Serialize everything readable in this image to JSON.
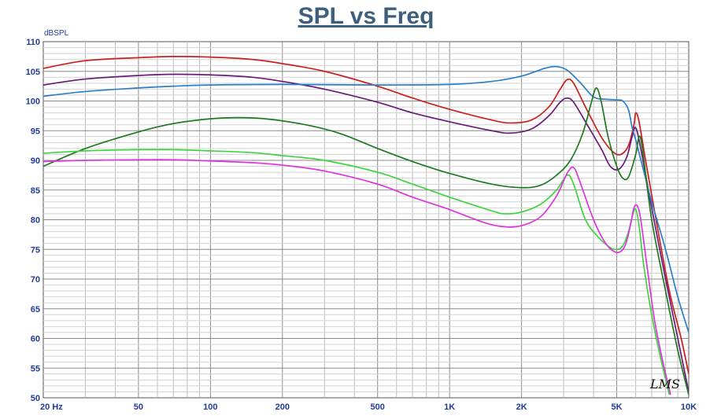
{
  "chart_data": {
    "type": "line",
    "title": "SPL vs Freq",
    "ylabel": "dBSPL",
    "x_scale": "log",
    "xlim": [
      20,
      10000
    ],
    "ylim": [
      50,
      110
    ],
    "grid": true,
    "x_tick_labels": [
      {
        "value": 20,
        "label": "20  Hz"
      },
      {
        "value": 50,
        "label": "50"
      },
      {
        "value": 100,
        "label": "100"
      },
      {
        "value": 200,
        "label": "200"
      },
      {
        "value": 500,
        "label": "500"
      },
      {
        "value": 1000,
        "label": "1K"
      },
      {
        "value": 2000,
        "label": "2K"
      },
      {
        "value": 5000,
        "label": "5K"
      },
      {
        "value": 10000,
        "label": "10K"
      }
    ],
    "y_ticks": [
      110,
      105,
      100,
      95,
      90,
      85,
      80,
      75,
      70,
      65,
      60,
      55,
      50
    ],
    "series": [
      {
        "color": "#cc1f1f",
        "points": [
          [
            20,
            105.5
          ],
          [
            30,
            106.8
          ],
          [
            50,
            107.3
          ],
          [
            70,
            107.5
          ],
          [
            100,
            107.4
          ],
          [
            150,
            107.0
          ],
          [
            200,
            106.3
          ],
          [
            300,
            105.0
          ],
          [
            500,
            102.5
          ],
          [
            700,
            100.5
          ],
          [
            1000,
            98.6
          ],
          [
            1500,
            96.8
          ],
          [
            1800,
            96.3
          ],
          [
            2200,
            96.8
          ],
          [
            2600,
            99.0
          ],
          [
            2900,
            102.0
          ],
          [
            3100,
            103.6
          ],
          [
            3300,
            103.0
          ],
          [
            3700,
            99.0
          ],
          [
            4300,
            94.0
          ],
          [
            4800,
            91.5
          ],
          [
            5200,
            91.0
          ],
          [
            5600,
            92.5
          ],
          [
            5900,
            96.0
          ],
          [
            6000,
            98.0
          ],
          [
            6200,
            96.5
          ],
          [
            6600,
            90.0
          ],
          [
            7300,
            80.0
          ],
          [
            8300,
            68.0
          ],
          [
            9300,
            60.0
          ],
          [
            10000,
            54.0
          ]
        ]
      },
      {
        "color": "#6a1a7a",
        "points": [
          [
            20,
            102.7
          ],
          [
            30,
            103.7
          ],
          [
            50,
            104.3
          ],
          [
            70,
            104.5
          ],
          [
            100,
            104.4
          ],
          [
            150,
            104.0
          ],
          [
            200,
            103.3
          ],
          [
            300,
            102.0
          ],
          [
            500,
            99.8
          ],
          [
            700,
            98.0
          ],
          [
            1000,
            96.5
          ],
          [
            1500,
            95.0
          ],
          [
            1800,
            94.6
          ],
          [
            2200,
            95.3
          ],
          [
            2600,
            97.5
          ],
          [
            2900,
            99.8
          ],
          [
            3100,
            100.5
          ],
          [
            3300,
            99.8
          ],
          [
            3700,
            96.5
          ],
          [
            4300,
            92.0
          ],
          [
            4700,
            89.0
          ],
          [
            5100,
            88.5
          ],
          [
            5500,
            90.5
          ],
          [
            5800,
            94.0
          ],
          [
            6000,
            95.5
          ],
          [
            6300,
            92.0
          ],
          [
            7000,
            82.0
          ],
          [
            8000,
            70.0
          ],
          [
            9000,
            60.0
          ],
          [
            10000,
            51.0
          ]
        ]
      },
      {
        "color": "#2a7fc8",
        "points": [
          [
            20,
            100.8
          ],
          [
            30,
            101.6
          ],
          [
            50,
            102.2
          ],
          [
            70,
            102.5
          ],
          [
            100,
            102.7
          ],
          [
            200,
            102.8
          ],
          [
            500,
            102.7
          ],
          [
            1000,
            102.8
          ],
          [
            1500,
            103.3
          ],
          [
            2000,
            104.2
          ],
          [
            2500,
            105.5
          ],
          [
            2800,
            105.8
          ],
          [
            3100,
            105.2
          ],
          [
            3500,
            103.2
          ],
          [
            4000,
            100.7
          ],
          [
            4500,
            100.3
          ],
          [
            5000,
            100.2
          ],
          [
            5300,
            100.0
          ],
          [
            5600,
            98.5
          ],
          [
            5800,
            95.5
          ],
          [
            6000,
            93.5
          ],
          [
            6500,
            88.0
          ],
          [
            7000,
            83.0
          ],
          [
            8000,
            75.0
          ],
          [
            9000,
            67.0
          ],
          [
            10000,
            61.0
          ]
        ]
      },
      {
        "color": "#1e7a1e",
        "points": [
          [
            20,
            89.0
          ],
          [
            30,
            92.0
          ],
          [
            50,
            94.8
          ],
          [
            70,
            96.2
          ],
          [
            100,
            97.0
          ],
          [
            130,
            97.2
          ],
          [
            170,
            97.0
          ],
          [
            250,
            96.0
          ],
          [
            350,
            94.5
          ],
          [
            500,
            92.0
          ],
          [
            700,
            89.8
          ],
          [
            1000,
            87.8
          ],
          [
            1500,
            86.0
          ],
          [
            2000,
            85.4
          ],
          [
            2400,
            85.8
          ],
          [
            2800,
            87.5
          ],
          [
            3200,
            90.0
          ],
          [
            3600,
            94.5
          ],
          [
            3900,
            99.5
          ],
          [
            4100,
            102.2
          ],
          [
            4300,
            100.0
          ],
          [
            4600,
            94.0
          ],
          [
            5000,
            89.0
          ],
          [
            5300,
            87.0
          ],
          [
            5600,
            87.2
          ],
          [
            6000,
            91.0
          ],
          [
            6200,
            94.0
          ],
          [
            6400,
            92.0
          ],
          [
            7000,
            80.0
          ],
          [
            8000,
            68.0
          ],
          [
            9000,
            58.0
          ],
          [
            10000,
            50.5
          ]
        ]
      },
      {
        "color": "#3fd43f",
        "points": [
          [
            20,
            91.2
          ],
          [
            30,
            91.6
          ],
          [
            50,
            91.8
          ],
          [
            70,
            91.8
          ],
          [
            100,
            91.6
          ],
          [
            150,
            91.3
          ],
          [
            200,
            90.8
          ],
          [
            300,
            90.0
          ],
          [
            500,
            88.0
          ],
          [
            700,
            86.0
          ],
          [
            1000,
            83.8
          ],
          [
            1500,
            81.5
          ],
          [
            1700,
            81.0
          ],
          [
            2000,
            81.3
          ],
          [
            2400,
            82.6
          ],
          [
            2800,
            85.0
          ],
          [
            3100,
            87.5
          ],
          [
            3300,
            86.0
          ],
          [
            3700,
            80.0
          ],
          [
            4200,
            77.0
          ],
          [
            4700,
            75.3
          ],
          [
            5000,
            75.0
          ],
          [
            5300,
            75.6
          ],
          [
            5600,
            78.0
          ],
          [
            5800,
            80.5
          ],
          [
            6000,
            81.8
          ],
          [
            6200,
            79.0
          ],
          [
            6500,
            72.0
          ],
          [
            7000,
            64.0
          ],
          [
            7600,
            57.0
          ],
          [
            8300,
            50.5
          ]
        ]
      },
      {
        "color": "#dd35dd",
        "points": [
          [
            20,
            89.8
          ],
          [
            30,
            90.0
          ],
          [
            50,
            90.1
          ],
          [
            70,
            90.1
          ],
          [
            100,
            89.9
          ],
          [
            150,
            89.6
          ],
          [
            200,
            89.2
          ],
          [
            300,
            88.2
          ],
          [
            500,
            86.0
          ],
          [
            700,
            83.8
          ],
          [
            1000,
            81.7
          ],
          [
            1400,
            79.5
          ],
          [
            1700,
            78.8
          ],
          [
            2000,
            79.0
          ],
          [
            2400,
            80.5
          ],
          [
            2800,
            84.0
          ],
          [
            3100,
            87.8
          ],
          [
            3300,
            88.8
          ],
          [
            3500,
            86.5
          ],
          [
            4000,
            80.0
          ],
          [
            4500,
            76.0
          ],
          [
            5000,
            74.5
          ],
          [
            5400,
            75.5
          ],
          [
            5700,
            79.0
          ],
          [
            5900,
            82.0
          ],
          [
            6100,
            82.3
          ],
          [
            6300,
            80.0
          ],
          [
            6700,
            72.0
          ],
          [
            7200,
            63.0
          ],
          [
            7800,
            56.0
          ],
          [
            8400,
            50.5
          ]
        ]
      }
    ],
    "annotation": "LMS"
  }
}
